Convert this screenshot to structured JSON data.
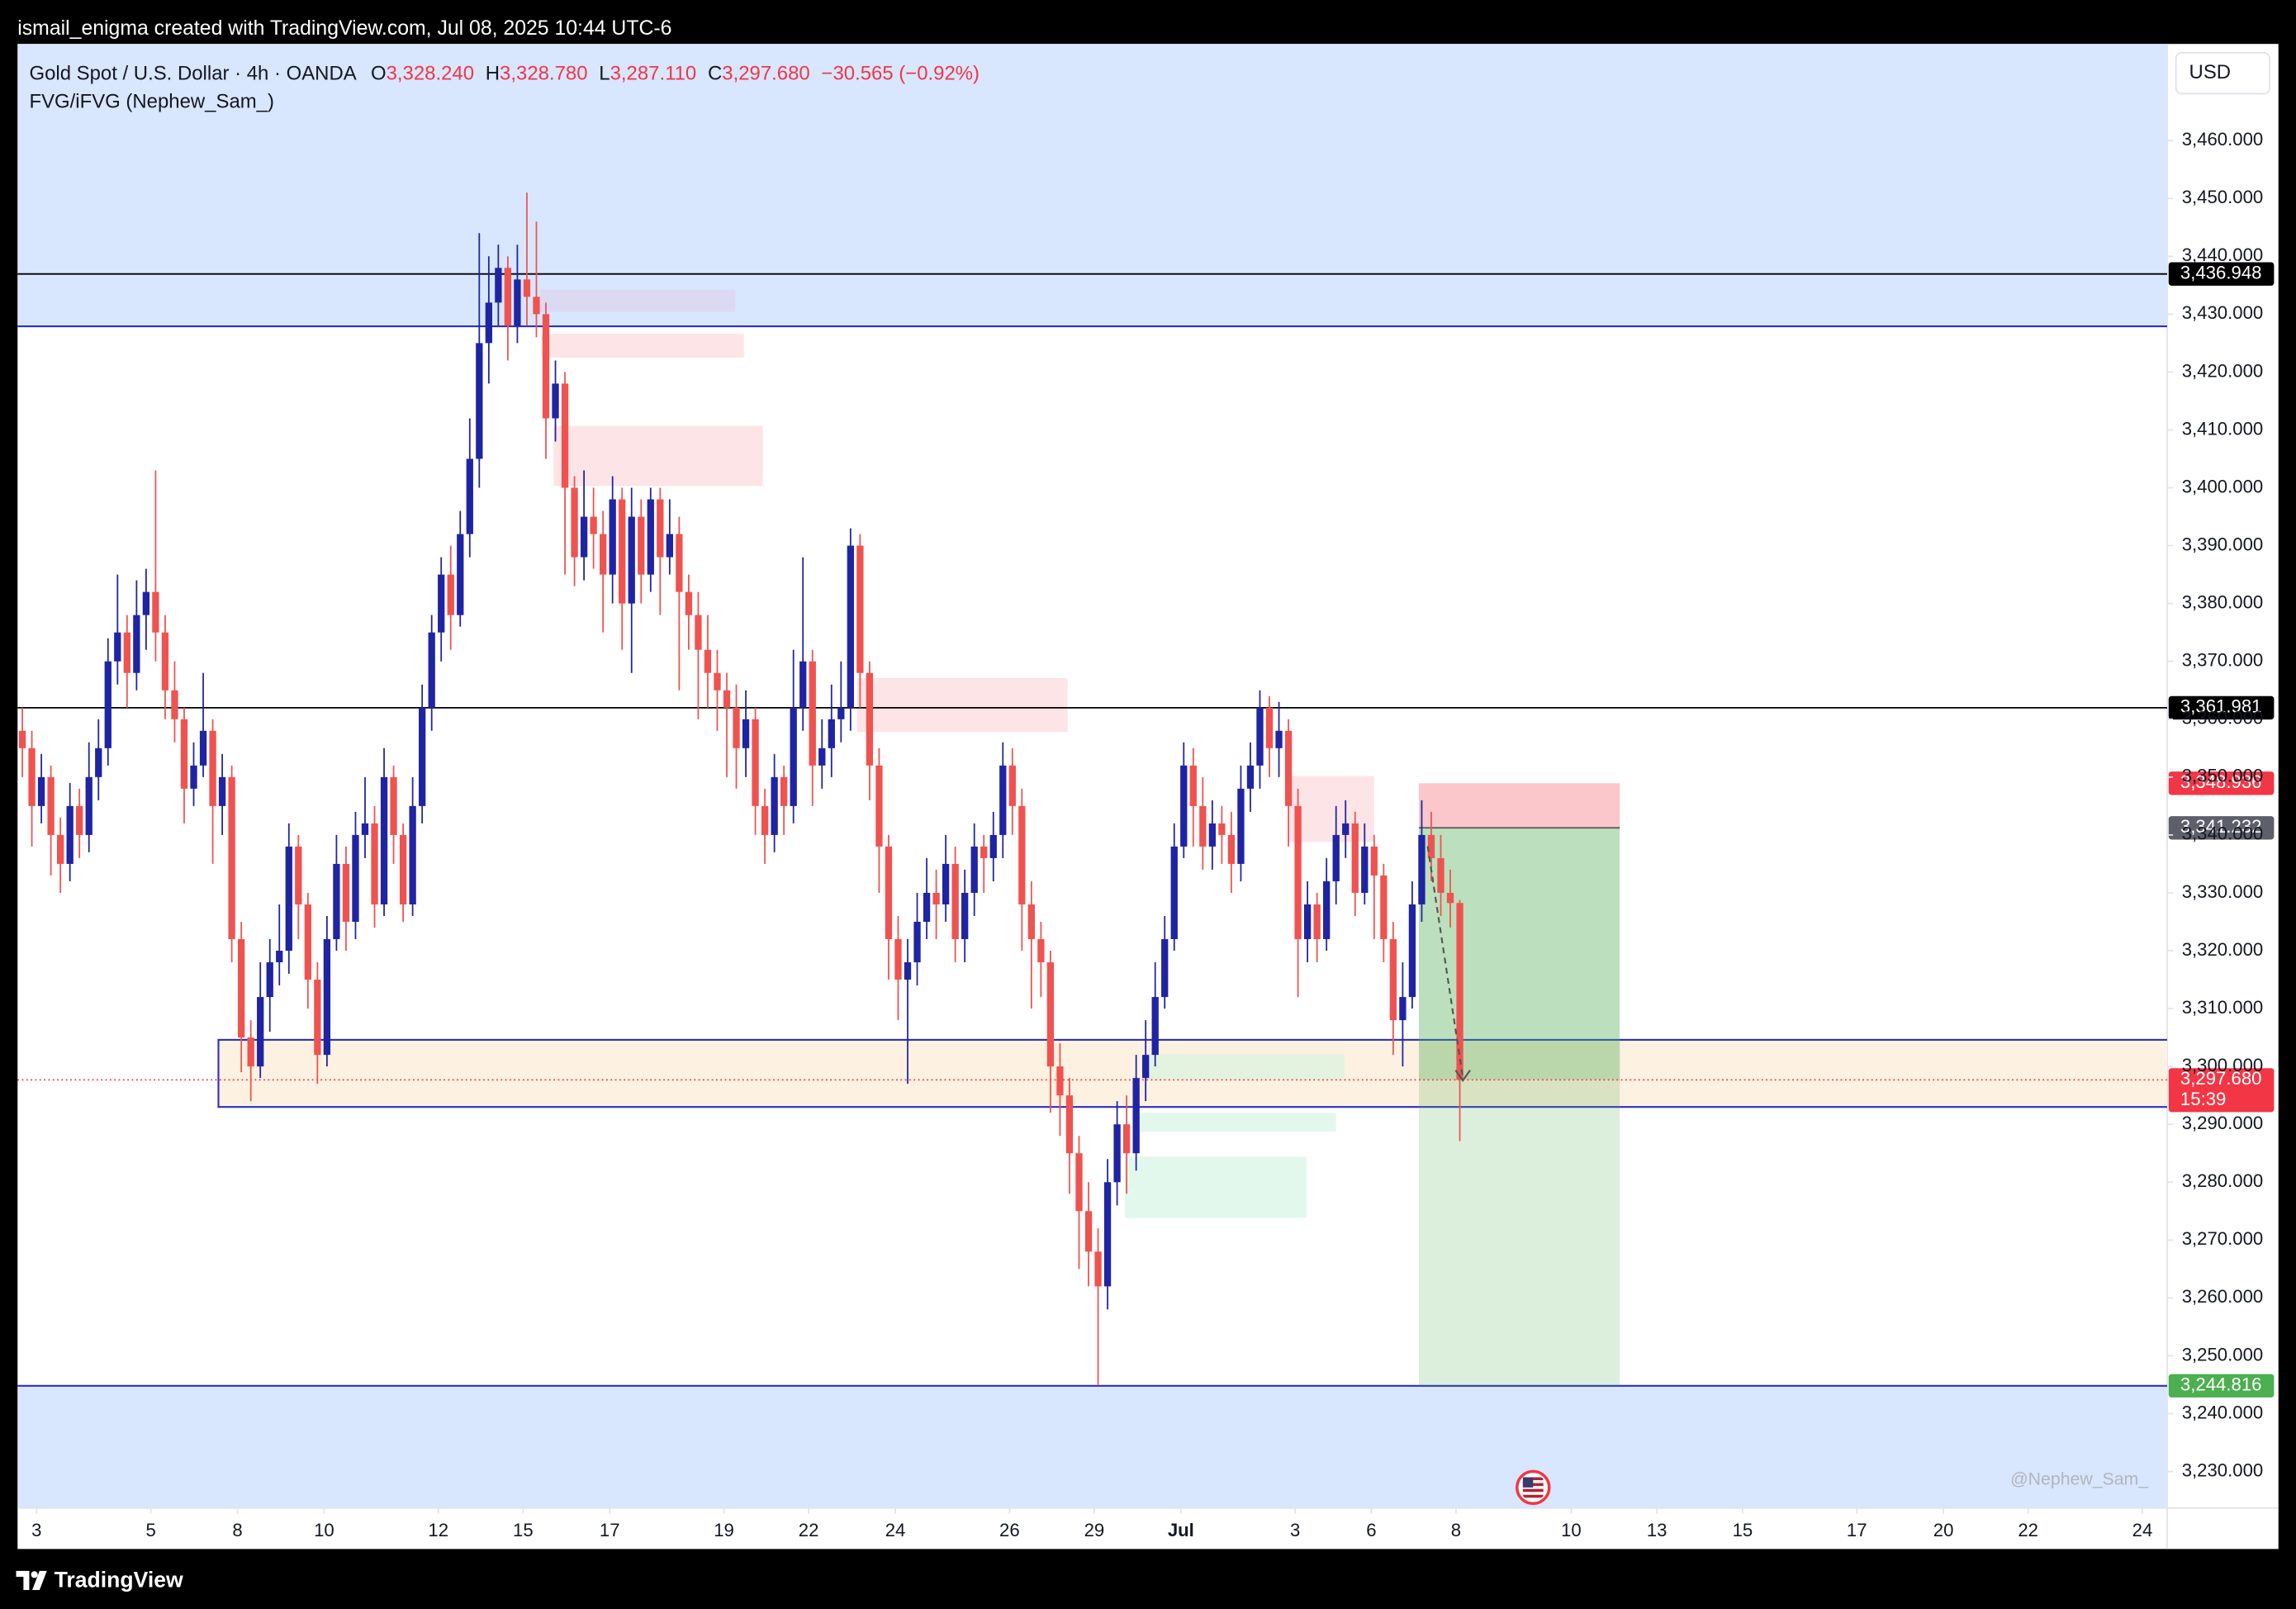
{
  "header": {
    "author_line": "ismail_enigma created with TradingView.com, Jul 08, 2025 10:44 UTC-6"
  },
  "footer": {
    "brand": "TradingView"
  },
  "chart_data": {
    "type": "candlestick",
    "symbol": "Gold Spot / U.S. Dollar · 4h · OANDA",
    "ohlc_legend": [
      {
        "key": "O",
        "value": "3,328.240"
      },
      {
        "key": "H",
        "value": "3,328.780"
      },
      {
        "key": "L",
        "value": "3,287.110"
      },
      {
        "key": "C",
        "value": "3,297.680"
      }
    ],
    "change": "−30.565 (−0.92%)",
    "indicator": "FVG/iFVG (Nephew_Sam_)",
    "currency": "USD",
    "watermark": "@Nephew_Sam_",
    "countdown": "15:39",
    "up_color": "#1f24a3",
    "down_color": "#ef5350",
    "ylim": [
      3223.7,
      3476.7
    ],
    "xlim": [
      0,
      225.8
    ],
    "grid": false,
    "yticks": [
      {
        "value": 3230,
        "label": "3,230.000"
      },
      {
        "value": 3240,
        "label": "3,240.000"
      },
      {
        "value": 3250,
        "label": "3,250.000"
      },
      {
        "value": 3260,
        "label": "3,260.000"
      },
      {
        "value": 3270,
        "label": "3,270.000"
      },
      {
        "value": 3280,
        "label": "3,280.000"
      },
      {
        "value": 3290,
        "label": "3,290.000"
      },
      {
        "value": 3300,
        "label": "3,300.000"
      },
      {
        "value": 3310,
        "label": "3,310.000"
      },
      {
        "value": 3320,
        "label": "3,320.000"
      },
      {
        "value": 3330,
        "label": "3,330.000"
      },
      {
        "value": 3340,
        "label": "3,340.000"
      },
      {
        "value": 3350,
        "label": "3,350.000"
      },
      {
        "value": 3360,
        "label": "3,360.000"
      },
      {
        "value": 3370,
        "label": "3,370.000"
      },
      {
        "value": 3380,
        "label": "3,380.000"
      },
      {
        "value": 3390,
        "label": "3,390.000"
      },
      {
        "value": 3400,
        "label": "3,400.000"
      },
      {
        "value": 3410,
        "label": "3,410.000"
      },
      {
        "value": 3420,
        "label": "3,420.000"
      },
      {
        "value": 3430,
        "label": "3,430.000"
      },
      {
        "value": 3440,
        "label": "3,440.000"
      },
      {
        "value": 3450,
        "label": "3,450.000"
      },
      {
        "value": 3460,
        "label": "3,460.000"
      }
    ],
    "xticks": [
      {
        "value": 2.0,
        "label": "3"
      },
      {
        "value": 14.0,
        "label": "5"
      },
      {
        "value": 23.1,
        "label": "8"
      },
      {
        "value": 32.2,
        "label": "10"
      },
      {
        "value": 44.2,
        "label": "12"
      },
      {
        "value": 53.1,
        "label": "15"
      },
      {
        "value": 62.2,
        "label": "17"
      },
      {
        "value": 74.2,
        "label": "19"
      },
      {
        "value": 83.1,
        "label": "22"
      },
      {
        "value": 92.2,
        "label": "24"
      },
      {
        "value": 104.2,
        "label": "26"
      },
      {
        "value": 113.1,
        "label": "29"
      },
      {
        "value": 122.2,
        "label": "Jul"
      },
      {
        "value": 134.2,
        "label": "3"
      },
      {
        "value": 142.2,
        "label": "6"
      },
      {
        "value": 151.1,
        "label": "8"
      },
      {
        "value": 163.2,
        "label": "10"
      },
      {
        "value": 172.2,
        "label": "13"
      },
      {
        "value": 181.2,
        "label": "15"
      },
      {
        "value": 193.2,
        "label": "17"
      },
      {
        "value": 202.3,
        "label": "20"
      },
      {
        "value": 211.2,
        "label": "22"
      },
      {
        "value": 223.2,
        "label": "24"
      }
    ],
    "open": [
      3358,
      3355,
      3345,
      3350,
      3340,
      3335,
      3345,
      3340,
      3350,
      3355,
      3370,
      3375,
      3368,
      3378,
      3382,
      3375,
      3365,
      3360,
      3348,
      3352,
      3358,
      3345,
      3350,
      3322,
      3305,
      3300,
      3312,
      3318,
      3320,
      3338,
      3328,
      3315,
      3302,
      3322,
      3335,
      3325,
      3340,
      3342,
      3328,
      3350,
      3340,
      3328,
      3345,
      3362,
      3375,
      3385,
      3378,
      3392,
      3405,
      3425,
      3432,
      3438,
      3428,
      3436,
      3433,
      3430,
      3412,
      3418,
      3400,
      3388,
      3395,
      3392,
      3385,
      3398,
      3380,
      3395,
      3385,
      3398,
      3388,
      3392,
      3382,
      3378,
      3372,
      3368,
      3365,
      3362,
      3355,
      3360,
      3345,
      3340,
      3350,
      3345,
      3362,
      3370,
      3352,
      3355,
      3360,
      3362,
      3390,
      3368,
      3352,
      3338,
      3322,
      3315,
      3318,
      3325,
      3330,
      3328,
      3335,
      3322,
      3330,
      3338,
      3336,
      3340,
      3352,
      3345,
      3328,
      3322,
      3318,
      3300,
      3295,
      3285,
      3275,
      3268,
      3262,
      3280,
      3290,
      3285,
      3298,
      3302,
      3312,
      3322,
      3338,
      3352,
      3345,
      3338,
      3342,
      3340,
      3335,
      3348,
      3352,
      3362,
      3355,
      3358,
      3345,
      3322,
      3328,
      3322,
      3332,
      3340,
      3342,
      3330,
      3338,
      3333,
      3322,
      3308,
      3312,
      3328,
      3340,
      3336,
      3330,
      3328.24
    ],
    "high": [
      3362,
      3358,
      3354,
      3352,
      3343,
      3349,
      3348,
      3356,
      3360,
      3374,
      3385,
      3378,
      3384,
      3386,
      3403,
      3378,
      3370,
      3362,
      3356,
      3368,
      3360,
      3354,
      3352,
      3325,
      3308,
      3318,
      3322,
      3328,
      3342,
      3340,
      3330,
      3318,
      3326,
      3340,
      3338,
      3344,
      3350,
      3345,
      3355,
      3352,
      3342,
      3350,
      3366,
      3378,
      3388,
      3390,
      3396,
      3412,
      3444,
      3440,
      3442,
      3440,
      3442,
      3451,
      3446,
      3432,
      3422,
      3420,
      3402,
      3403,
      3400,
      3396,
      3402,
      3400,
      3400,
      3398,
      3400,
      3400,
      3398,
      3395,
      3385,
      3382,
      3378,
      3372,
      3368,
      3366,
      3365,
      3362,
      3348,
      3354,
      3352,
      3372,
      3388,
      3372,
      3360,
      3366,
      3370,
      3393,
      3392,
      3370,
      3355,
      3340,
      3326,
      3322,
      3330,
      3336,
      3334,
      3340,
      3338,
      3334,
      3342,
      3340,
      3344,
      3356,
      3355,
      3348,
      3332,
      3325,
      3320,
      3304,
      3298,
      3288,
      3280,
      3272,
      3284,
      3294,
      3295,
      3302,
      3308,
      3318,
      3326,
      3342,
      3356,
      3355,
      3350,
      3346,
      3345,
      3344,
      3352,
      3356,
      3365,
      3364,
      3363,
      3360,
      3348,
      3332,
      3330,
      3336,
      3345,
      3346,
      3344,
      3342,
      3340,
      3335,
      3325,
      3318,
      3332,
      3346,
      3344,
      3340,
      3334,
      3328.78
    ],
    "low": [
      3350,
      3338,
      3342,
      3333,
      3330,
      3332,
      3336,
      3337,
      3346,
      3352,
      3366,
      3362,
      3365,
      3372,
      3370,
      3360,
      3356,
      3342,
      3345,
      3350,
      3335,
      3340,
      3318,
      3299,
      3294,
      3298,
      3306,
      3314,
      3316,
      3322,
      3310,
      3297,
      3300,
      3320,
      3320,
      3322,
      3336,
      3324,
      3326,
      3335,
      3325,
      3326,
      3342,
      3358,
      3370,
      3372,
      3376,
      3388,
      3400,
      3418,
      3428,
      3422,
      3425,
      3428,
      3426,
      3405,
      3408,
      3385,
      3383,
      3384,
      3386,
      3375,
      3380,
      3372,
      3368,
      3380,
      3382,
      3378,
      3385,
      3365,
      3372,
      3360,
      3362,
      3358,
      3350,
      3348,
      3350,
      3340,
      3335,
      3337,
      3340,
      3342,
      3358,
      3345,
      3348,
      3350,
      3356,
      3358,
      3362,
      3346,
      3330,
      3315,
      3308,
      3297,
      3314,
      3322,
      3322,
      3325,
      3318,
      3318,
      3326,
      3330,
      3332,
      3336,
      3340,
      3320,
      3310,
      3312,
      3292,
      3288,
      3278,
      3265,
      3262,
      3245,
      3258,
      3276,
      3278,
      3282,
      3294,
      3300,
      3310,
      3320,
      3336,
      3338,
      3334,
      3334,
      3335,
      3330,
      3332,
      3344,
      3348,
      3350,
      3350,
      3338,
      3312,
      3318,
      3318,
      3320,
      3328,
      3336,
      3326,
      3328,
      3322,
      3318,
      3302,
      3300,
      3310,
      3325,
      3332,
      3326,
      3324,
      3287.11
    ],
    "close": [
      3355,
      3345,
      3350,
      3340,
      3335,
      3345,
      3340,
      3350,
      3355,
      3370,
      3375,
      3368,
      3378,
      3382,
      3375,
      3365,
      3360,
      3348,
      3352,
      3358,
      3345,
      3350,
      3322,
      3305,
      3300,
      3312,
      3318,
      3320,
      3338,
      3328,
      3315,
      3302,
      3322,
      3335,
      3325,
      3340,
      3342,
      3328,
      3350,
      3340,
      3328,
      3345,
      3362,
      3375,
      3385,
      3378,
      3392,
      3405,
      3425,
      3432,
      3438,
      3428,
      3436,
      3433,
      3430,
      3412,
      3418,
      3400,
      3388,
      3395,
      3392,
      3385,
      3398,
      3380,
      3395,
      3385,
      3398,
      3388,
      3392,
      3382,
      3378,
      3372,
      3368,
      3365,
      3362,
      3355,
      3360,
      3345,
      3340,
      3350,
      3345,
      3362,
      3370,
      3352,
      3355,
      3360,
      3362,
      3390,
      3368,
      3352,
      3338,
      3322,
      3315,
      3318,
      3325,
      3330,
      3328,
      3335,
      3322,
      3330,
      3338,
      3336,
      3340,
      3352,
      3345,
      3328,
      3322,
      3318,
      3300,
      3295,
      3285,
      3275,
      3268,
      3262,
      3280,
      3290,
      3285,
      3298,
      3302,
      3312,
      3322,
      3338,
      3352,
      3345,
      3338,
      3342,
      3340,
      3335,
      3348,
      3352,
      3362,
      3355,
      3358,
      3345,
      3322,
      3328,
      3322,
      3332,
      3340,
      3342,
      3330,
      3338,
      3333,
      3322,
      3308,
      3312,
      3328,
      3340,
      3336,
      3330,
      3328.24,
      3297.68
    ],
    "zones": [
      {
        "edge": 3427.9,
        "side": "above",
        "color": "#d8e6fe",
        "border": "#2d2fc4"
      },
      {
        "edge": 3244.816,
        "side": "below",
        "color": "#d8e6fe",
        "border": "#2d2fc4"
      }
    ],
    "demand_zone": {
      "from": 3293.0,
      "to": 3304.6,
      "start": 21.1,
      "color": "#fdf1e1",
      "border": "#2d2fc4"
    },
    "fvg_boxes": [
      {
        "from": 3430.4,
        "to": 3434.2,
        "start": 54.8,
        "end": 75.4,
        "color": "#dcd9f2"
      },
      {
        "from": 3422.5,
        "to": 3426.6,
        "start": 55.0,
        "end": 76.3,
        "color": "#fde4e6"
      },
      {
        "from": 3400.3,
        "to": 3410.7,
        "start": 56.3,
        "end": 78.3,
        "color": "#fde4e6"
      },
      {
        "from": 3357.8,
        "to": 3367.1,
        "start": 88.2,
        "end": 110.3,
        "color": "#fde4e6"
      },
      {
        "from": 3338.8,
        "to": 3350.2,
        "start": 133.5,
        "end": 142.5,
        "color": "#fde4e6"
      },
      {
        "from": 3297.6,
        "to": 3302.1,
        "start": 118.5,
        "end": 139.4,
        "color": "#e4f3e0"
      },
      {
        "from": 3288.7,
        "to": 3292.0,
        "start": 117.4,
        "end": 138.5,
        "color": "#e3f8ec"
      },
      {
        "from": 3273.8,
        "to": 3284.4,
        "start": 116.3,
        "end": 135.4,
        "color": "#e3f8ec"
      }
    ],
    "position": {
      "stop": 3348.936,
      "entry": 3341.232,
      "target": 3244.816,
      "start": 147.2,
      "end": 168.3
    },
    "price_labels": [
      {
        "value": 3436.948,
        "label": "3,436.948",
        "color": "#000000",
        "line": "full"
      },
      {
        "value": 3361.981,
        "label": "3,361.981",
        "color": "#000000",
        "line": "full"
      },
      {
        "value": 3348.936,
        "label": "3,348.936",
        "color": "#f23645",
        "line": "none"
      },
      {
        "value": 3341.232,
        "label": "3,341.232",
        "color": "#5d606b",
        "line": "none"
      },
      {
        "value": 3297.68,
        "label": "3,297.680",
        "color": "#f23645",
        "line": "dotted"
      },
      {
        "value": 3244.816,
        "label": "3,244.816",
        "color": "#4caf50",
        "line": "none"
      }
    ]
  }
}
